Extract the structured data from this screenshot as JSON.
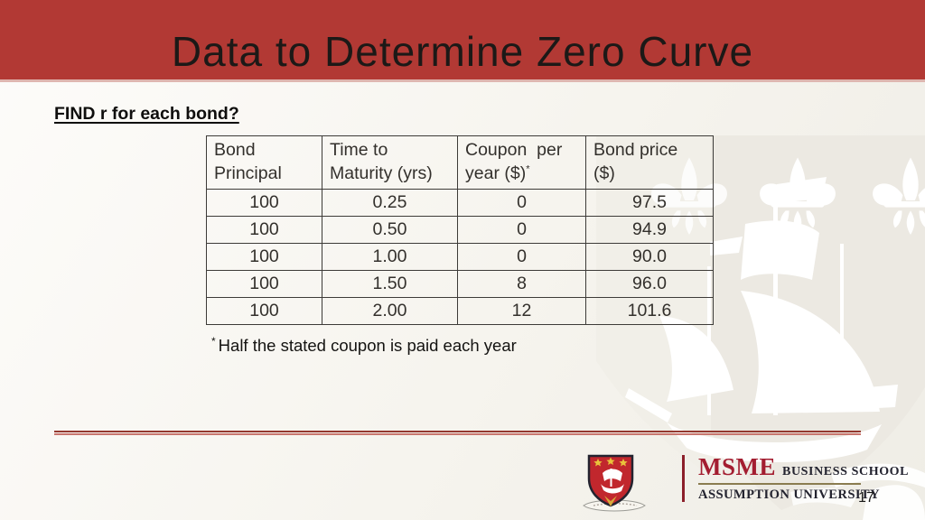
{
  "slide": {
    "title": "Data to Determine Zero Curve",
    "heading": "FIND r for each bond?",
    "footnote_marker": "*",
    "footnote_text": "Half the stated coupon is paid each year"
  },
  "table": {
    "headers": [
      {
        "text": "Bond Principal"
      },
      {
        "text": "Time to Maturity (yrs)"
      },
      {
        "text": "Coupon  per year ($)",
        "sup": "*"
      },
      {
        "text": "Bond price ($)"
      }
    ],
    "rows": [
      [
        "100",
        "0.25",
        "0",
        "97.5"
      ],
      [
        "100",
        "0.50",
        "0",
        "94.9"
      ],
      [
        "100",
        "1.00",
        "0",
        "90.0"
      ],
      [
        "100",
        "1.50",
        "8",
        "96.0"
      ],
      [
        "100",
        "2.00",
        "12",
        "101.6"
      ]
    ]
  },
  "footer": {
    "logo_acronym": "MSME",
    "logo_school": "BUSINESS SCHOOL",
    "logo_university": "ASSUMPTION UNIVERSITY",
    "page_number": "17"
  },
  "colors": {
    "banner_red": "#B23934",
    "rule_red": "#94382F",
    "logo_crimson": "#A31D30",
    "logo_navy": "#23232F",
    "crest_red": "#C1272D",
    "star_gold": "#E9C23B",
    "watermark_beige": "#ECE9E2"
  },
  "icons": {
    "watermark": "university-ship-crest-watermark",
    "crest": "msme-crest-shield-icon"
  }
}
